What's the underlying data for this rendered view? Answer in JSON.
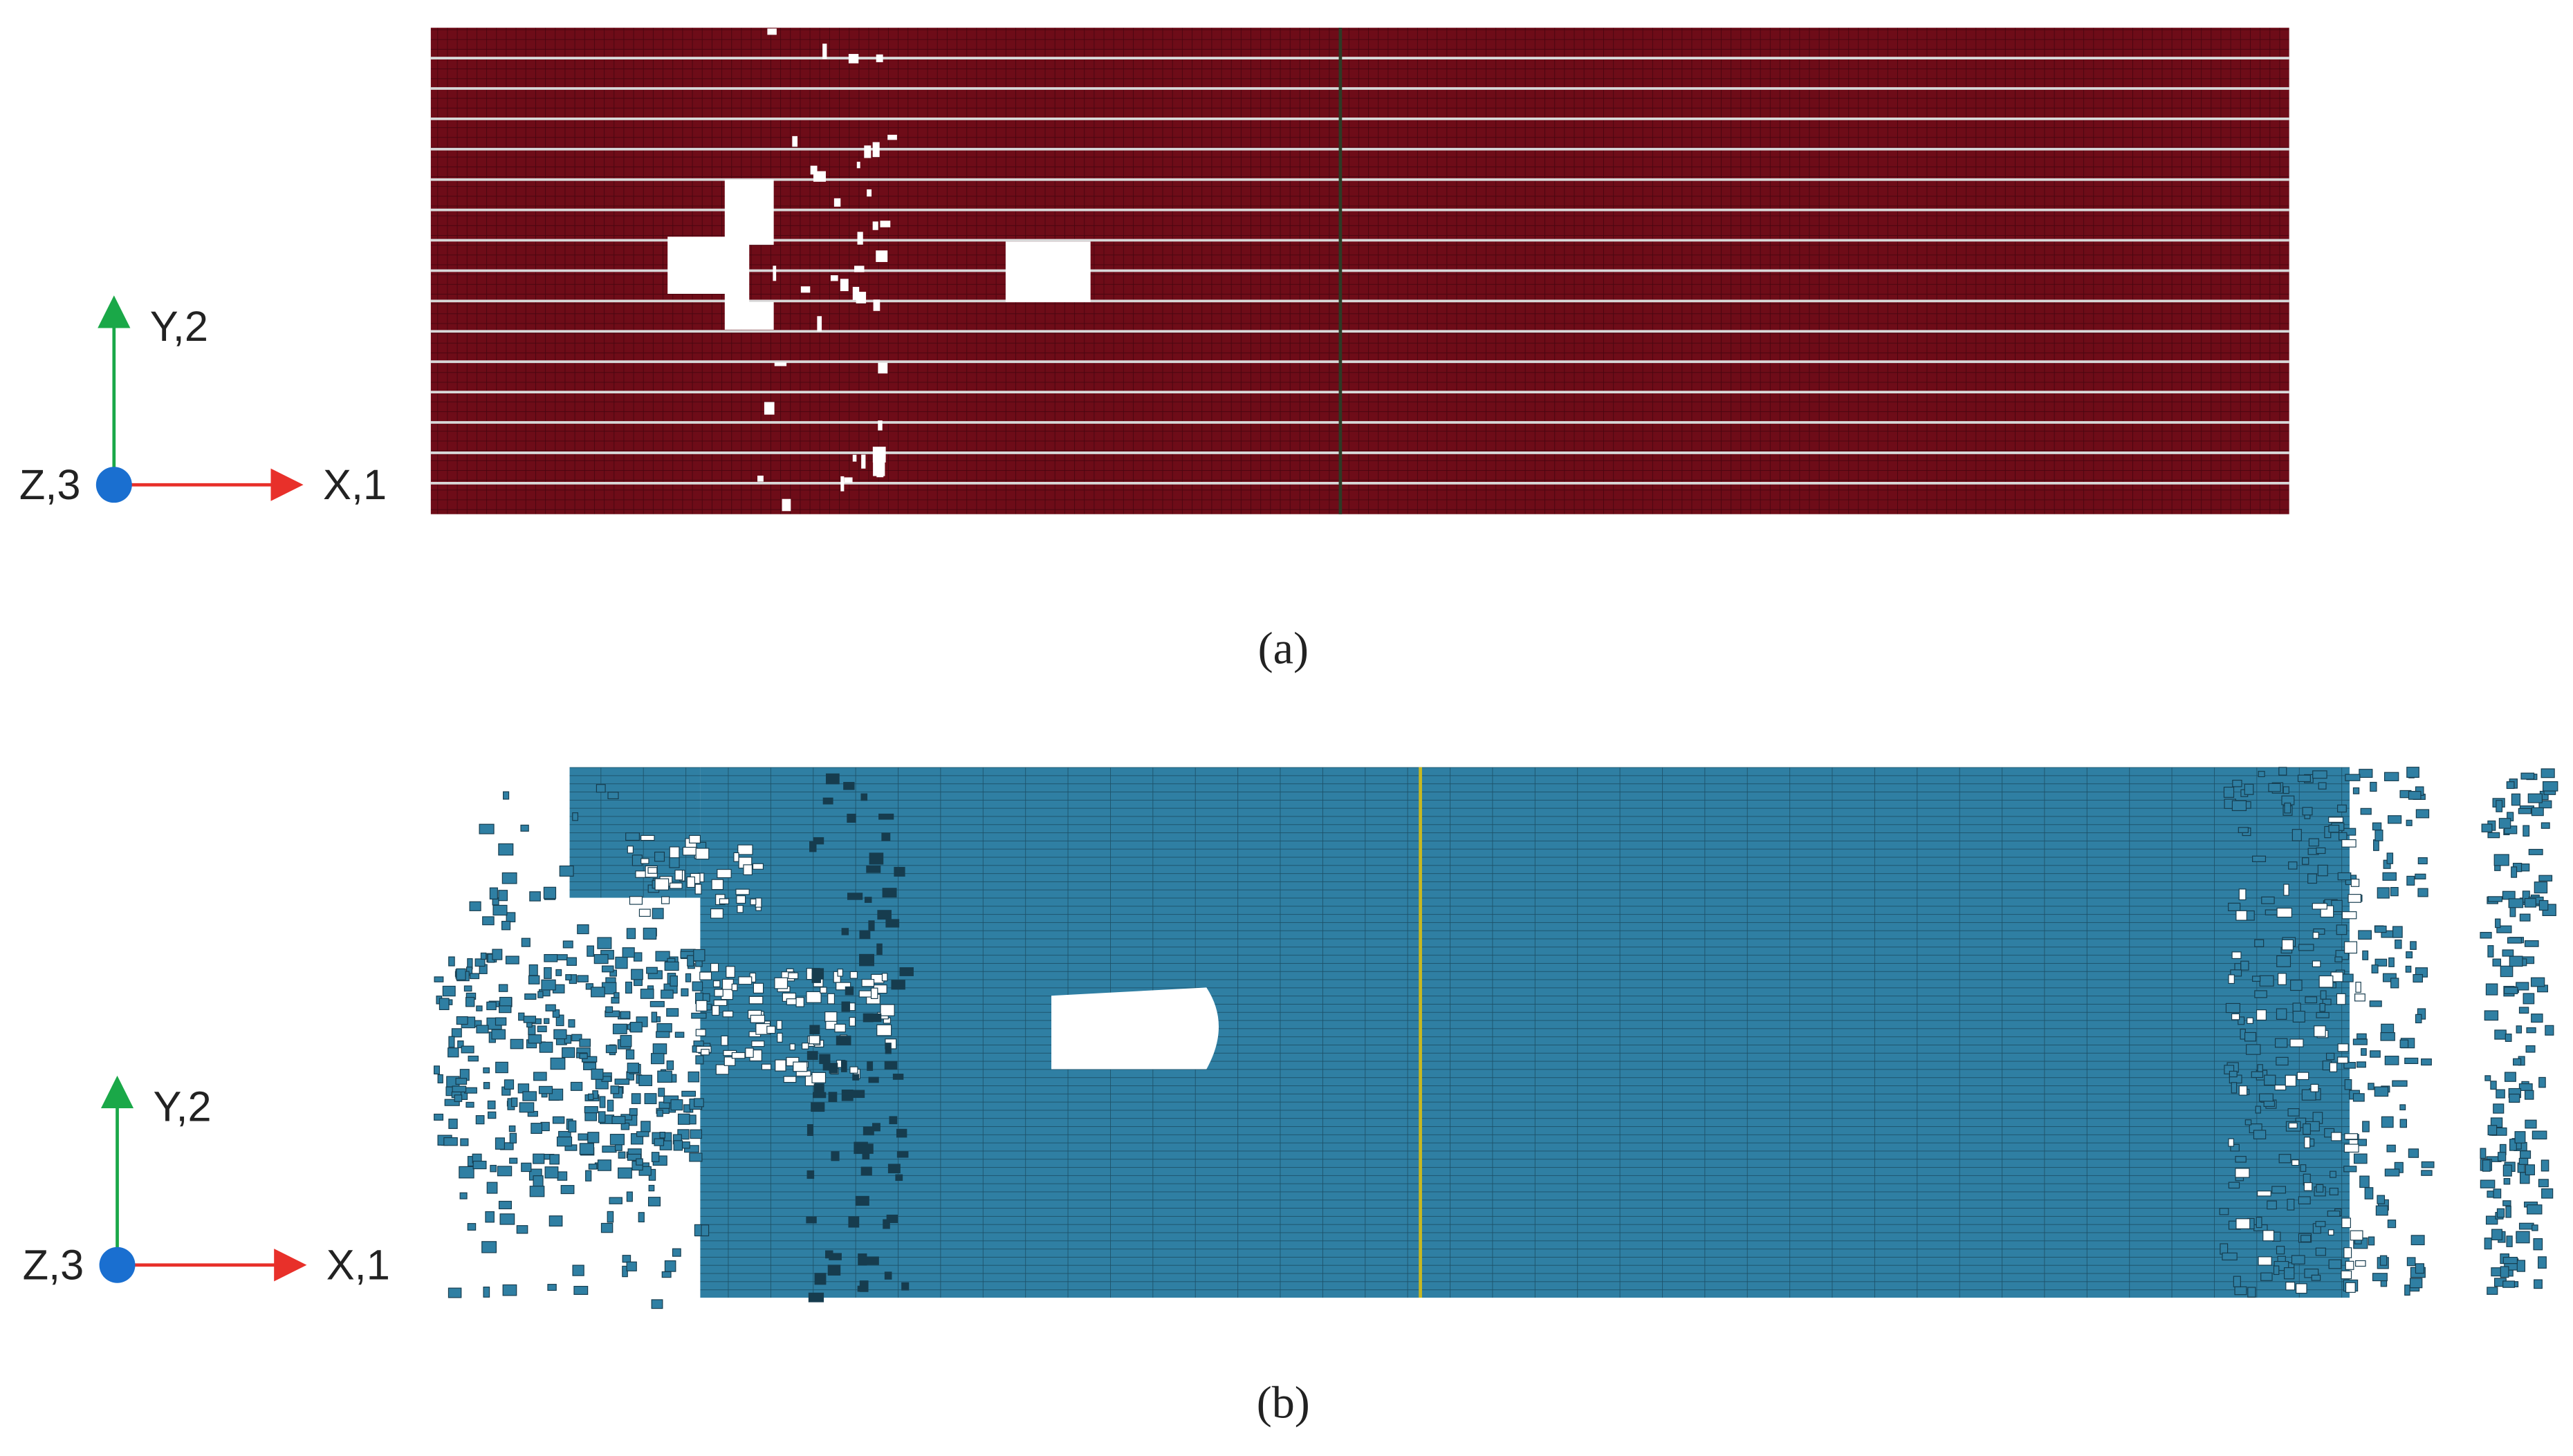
{
  "panels": [
    {
      "caption": "(a)",
      "axes": {
        "y": "Y,2",
        "z": "Z,3",
        "x": "X,1"
      }
    },
    {
      "caption": "(b)",
      "axes": {
        "y": "Y,2",
        "z": "Z,3",
        "x": "X,1"
      }
    }
  ]
}
